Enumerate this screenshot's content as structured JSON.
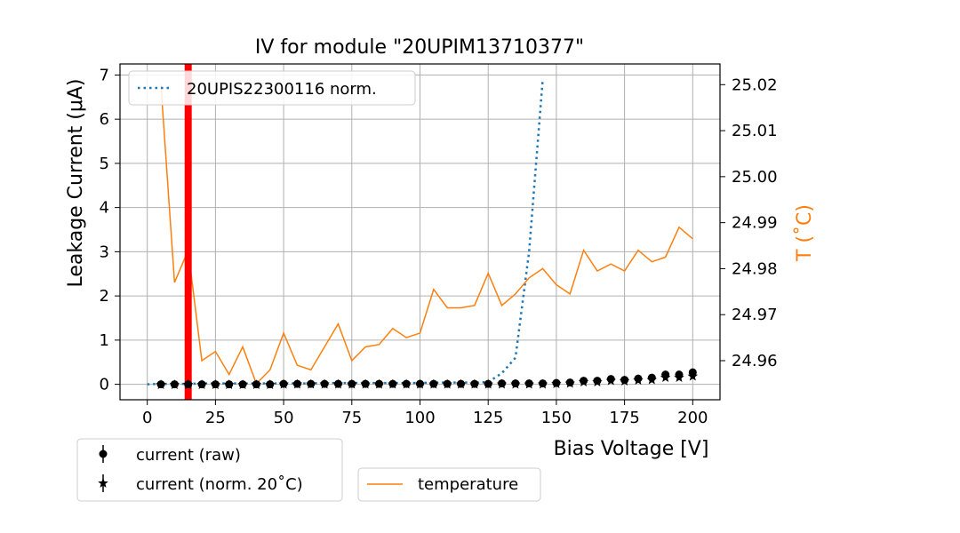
{
  "chart_data": {
    "type": "line",
    "title": "IV for module \"20UPIM13710377\"",
    "xlabel": "Bias Voltage [V]",
    "ylabel": "Leakage Current (μA)",
    "ylabel_right": "T (˚C)",
    "xlim": [
      -10,
      210
    ],
    "ylim": [
      -0.35,
      7.25
    ],
    "ylim_right": [
      24.9515,
      25.0245
    ],
    "x_ticks": [
      0,
      25,
      50,
      75,
      100,
      125,
      150,
      175,
      200
    ],
    "y_ticks": [
      0,
      1,
      2,
      3,
      4,
      5,
      6,
      7
    ],
    "y_right_ticks": [
      24.96,
      24.97,
      24.98,
      24.99,
      25.0,
      25.01,
      25.02
    ],
    "y_right_tick_labels": [
      "24.96",
      "24.97",
      "24.98",
      "24.99",
      "25.00",
      "25.01",
      "25.02"
    ],
    "grid": true,
    "vline": {
      "x": 15,
      "color": "#ff0000"
    },
    "legends": {
      "upper_left": [
        "20UPIS22300116 norm."
      ],
      "bottom_left": [
        "current (raw)",
        "current (norm. 20˚C)"
      ],
      "bottom_right": [
        "temperature"
      ]
    },
    "series": [
      {
        "name": "20UPIS22300116 norm.",
        "axis": "left",
        "style": "dotted",
        "color": "#1f77b4",
        "x": [
          0,
          5,
          10,
          15,
          20,
          25,
          30,
          35,
          40,
          45,
          50,
          55,
          60,
          65,
          70,
          75,
          80,
          85,
          90,
          95,
          100,
          105,
          110,
          115,
          120,
          125,
          130,
          135,
          140,
          145
        ],
        "y": [
          0.0,
          0.01,
          0.01,
          0.01,
          0.02,
          0.02,
          0.02,
          0.02,
          0.02,
          0.02,
          0.02,
          0.02,
          0.02,
          0.03,
          0.03,
          0.03,
          0.03,
          0.03,
          0.03,
          0.03,
          0.03,
          0.04,
          0.04,
          0.04,
          0.04,
          0.05,
          0.25,
          0.6,
          3.0,
          6.9
        ]
      },
      {
        "name": "current (raw)",
        "axis": "left",
        "style": "circle",
        "color": "#000000",
        "x": [
          5,
          10,
          15,
          20,
          25,
          30,
          35,
          40,
          45,
          50,
          55,
          60,
          65,
          70,
          75,
          80,
          85,
          90,
          95,
          100,
          105,
          110,
          115,
          120,
          125,
          130,
          135,
          140,
          145,
          150,
          155,
          160,
          165,
          170,
          175,
          180,
          185,
          190,
          195,
          200
        ],
        "y": [
          0.0,
          0.0,
          0.0,
          0.0,
          0.0,
          0.0,
          0.0,
          0.0,
          0.0,
          0.01,
          0.01,
          0.01,
          0.01,
          0.01,
          0.01,
          0.01,
          0.01,
          0.01,
          0.01,
          0.01,
          0.01,
          0.01,
          0.01,
          0.01,
          0.01,
          0.02,
          0.02,
          0.02,
          0.02,
          0.03,
          0.04,
          0.08,
          0.08,
          0.12,
          0.1,
          0.13,
          0.15,
          0.22,
          0.22,
          0.27
        ]
      },
      {
        "name": "current (norm. 20˚C)",
        "axis": "left",
        "style": "star",
        "color": "#000000",
        "x": [
          5,
          10,
          15,
          20,
          25,
          30,
          35,
          40,
          45,
          50,
          55,
          60,
          65,
          70,
          75,
          80,
          85,
          90,
          95,
          100,
          105,
          110,
          115,
          120,
          125,
          130,
          135,
          140,
          145,
          150,
          155,
          160,
          165,
          170,
          175,
          180,
          185,
          190,
          195,
          200
        ],
        "y": [
          -0.01,
          -0.01,
          -0.01,
          -0.01,
          -0.01,
          -0.01,
          -0.01,
          -0.01,
          -0.01,
          0.0,
          0.0,
          0.0,
          0.0,
          0.0,
          0.0,
          0.0,
          0.0,
          0.0,
          0.0,
          0.0,
          0.0,
          0.0,
          0.0,
          0.0,
          0.0,
          0.0,
          0.0,
          0.0,
          0.0,
          0.01,
          0.02,
          0.05,
          0.05,
          0.08,
          0.07,
          0.09,
          0.1,
          0.15,
          0.15,
          0.18
        ]
      },
      {
        "name": "temperature",
        "axis": "right",
        "style": "line",
        "color": "#ff7f0e",
        "x": [
          5,
          10,
          15,
          20,
          25,
          30,
          35,
          40,
          45,
          50,
          55,
          60,
          65,
          70,
          75,
          80,
          85,
          90,
          95,
          100,
          105,
          110,
          115,
          120,
          125,
          130,
          135,
          140,
          145,
          150,
          155,
          160,
          165,
          170,
          175,
          180,
          185,
          190,
          195,
          200
        ],
        "y": [
          25.02,
          24.977,
          24.984,
          24.96,
          24.962,
          24.957,
          24.963,
          24.955,
          24.958,
          24.966,
          24.959,
          24.958,
          24.963,
          24.968,
          24.96,
          24.963,
          24.9635,
          24.967,
          24.965,
          24.966,
          24.9755,
          24.9715,
          24.9715,
          24.972,
          24.979,
          24.972,
          24.9745,
          24.978,
          24.98,
          24.9765,
          24.9745,
          24.984,
          24.9795,
          24.981,
          24.9795,
          24.984,
          24.9815,
          24.9825,
          24.989,
          24.9865
        ]
      }
    ]
  }
}
